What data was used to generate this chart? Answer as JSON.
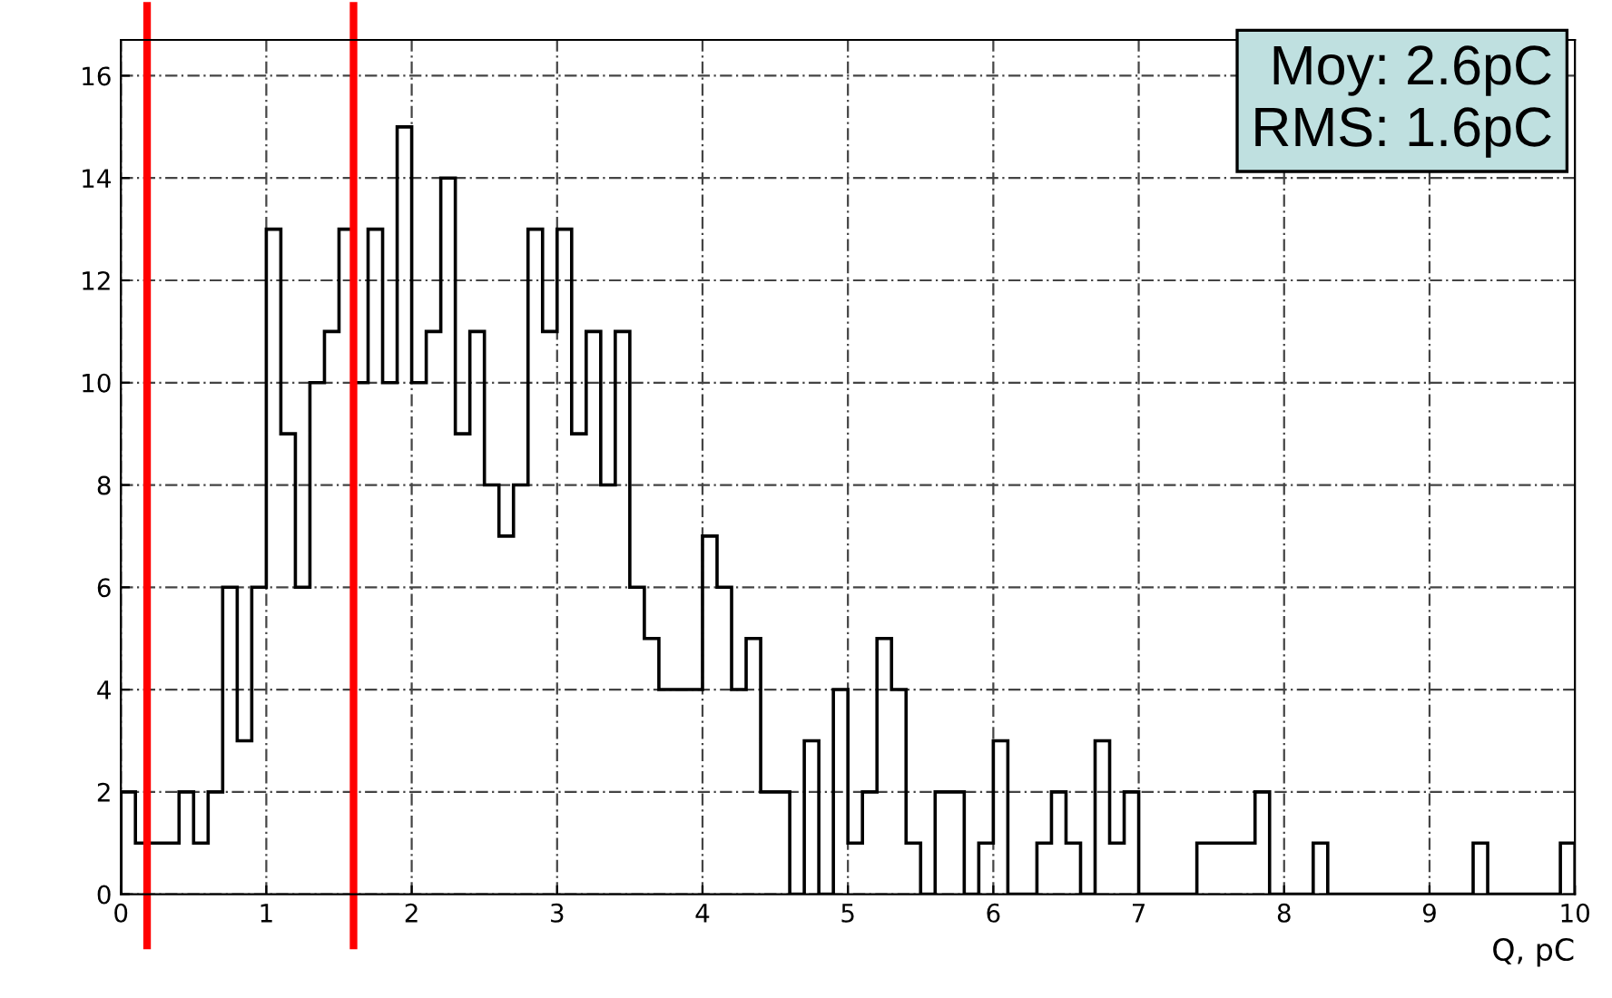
{
  "chart_data": {
    "type": "histogram",
    "xlabel": "Q, pC",
    "bins": [
      0,
      0.1,
      0.2,
      0.3,
      0.4,
      0.5,
      0.6,
      0.7,
      0.8,
      0.9,
      1,
      1.1,
      1.2,
      1.3,
      1.4,
      1.5,
      1.6,
      1.7,
      1.8,
      1.9,
      2,
      2.1,
      2.2,
      2.3,
      2.4,
      2.5,
      2.6,
      2.7,
      2.8,
      2.9,
      3,
      3.1,
      3.2,
      3.3,
      3.4,
      3.5,
      3.6,
      3.7,
      3.8,
      3.9,
      4,
      4.1,
      4.2,
      4.3,
      4.4,
      4.5,
      4.6,
      4.7,
      4.8,
      4.9,
      5,
      5.1,
      5.2,
      5.3,
      5.4,
      5.5,
      5.6,
      5.7,
      5.8,
      5.9,
      6,
      6.1,
      6.2,
      6.3,
      6.4,
      6.5,
      6.6,
      6.7,
      6.8,
      6.9,
      7,
      7.1,
      7.2,
      7.3,
      7.4,
      7.5,
      7.6,
      7.7,
      7.8,
      7.9,
      8,
      8.1,
      8.2,
      8.3,
      8.4,
      8.5,
      8.6,
      8.7,
      8.8,
      8.9,
      9,
      9.1,
      9.2,
      9.3,
      9.4,
      9.5,
      9.6,
      9.7,
      9.8,
      9.9,
      10
    ],
    "values": [
      2,
      1,
      1,
      1,
      2,
      1,
      2,
      6,
      3,
      6,
      13,
      9,
      6,
      10,
      11,
      13,
      10,
      13,
      10,
      15,
      10,
      11,
      14,
      9,
      11,
      8,
      7,
      8,
      13,
      11,
      13,
      9,
      11,
      8,
      11,
      6,
      5,
      4,
      4,
      4,
      7,
      6,
      4,
      5,
      2,
      2,
      0,
      3,
      0,
      4,
      1,
      2,
      5,
      4,
      1,
      0,
      2,
      2,
      0,
      1,
      3,
      0,
      0,
      1,
      2,
      1,
      0,
      3,
      1,
      2,
      0,
      0,
      0,
      0,
      1,
      1,
      1,
      1,
      2,
      0,
      0,
      0,
      1,
      0,
      0,
      0,
      0,
      0,
      0,
      0,
      0,
      0,
      0,
      1,
      0,
      0,
      0,
      0,
      0,
      1
    ],
    "color": "#000000",
    "xlim": [
      0,
      10
    ],
    "xticks": [
      0,
      1,
      2,
      3,
      4,
      5,
      6,
      7,
      8,
      9,
      10
    ],
    "ylim": [
      0,
      16.7
    ],
    "yticks": [
      0,
      2,
      4,
      6,
      8,
      10,
      12,
      14,
      16
    ],
    "grid": true,
    "ref_lines": [
      {
        "axis": "x",
        "value": 0.18,
        "color": "#ff0000"
      },
      {
        "axis": "x",
        "value": 1.6,
        "color": "#ff0000"
      }
    ],
    "annotations": [
      "Moy: 2.6pC",
      "RMS: 1.6pC"
    ]
  }
}
